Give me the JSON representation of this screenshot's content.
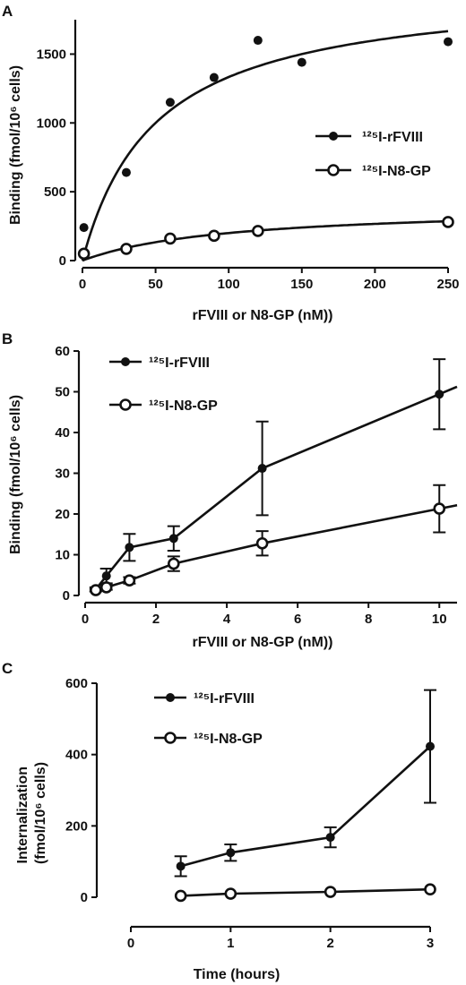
{
  "chart_data": [
    {
      "panel": "A",
      "type": "scatter",
      "xlabel": "rFVIII or N8-GP (nM))",
      "ylabel": "Binding (fmol/10⁶ cells)",
      "xlim": [
        0,
        250
      ],
      "ylim": [
        0,
        1750
      ],
      "xticks": [
        0,
        50,
        100,
        150,
        200,
        250
      ],
      "yticks": [
        0,
        500,
        1000,
        1500
      ],
      "legend_position": "center-right",
      "series": [
        {
          "name": "¹²⁵I-rFVIII",
          "marker": "filled",
          "x": [
            1,
            30,
            60,
            90,
            120,
            150,
            250
          ],
          "y": [
            240,
            640,
            1150,
            1330,
            1600,
            1440,
            1590
          ]
        },
        {
          "name": "¹²⁵I-N8-GP",
          "marker": "open",
          "x": [
            1,
            30,
            60,
            90,
            120,
            250
          ],
          "y": [
            50,
            85,
            160,
            180,
            215,
            280
          ]
        }
      ],
      "fits": [
        {
          "series": "¹²⁵I-rFVIII",
          "model": "one-site saturation",
          "bmax": 2000,
          "kd": 50
        },
        {
          "series": "¹²⁵I-N8-GP",
          "model": "one-site saturation",
          "bmax": 400,
          "kd": 100
        }
      ]
    },
    {
      "panel": "B",
      "type": "line",
      "xlabel": "rFVIII or N8-GP (nM))",
      "ylabel": "Binding (fmol/10⁶ cells)",
      "xlim": [
        0,
        10.5
      ],
      "ylim": [
        0,
        60
      ],
      "xticks": [
        0,
        2,
        4,
        6,
        8,
        10
      ],
      "yticks": [
        0,
        10,
        20,
        30,
        40,
        50,
        60
      ],
      "legend_position": "top-left",
      "series": [
        {
          "name": "¹²⁵I-rFVIII",
          "marker": "filled",
          "x": [
            0.3,
            0.6,
            1.25,
            2.5,
            5,
            10
          ],
          "y": [
            1.5,
            4.8,
            11.8,
            14,
            31.2,
            49.4
          ],
          "err": [
            0.5,
            1.8,
            3.3,
            3,
            11.5,
            8.6
          ]
        },
        {
          "name": "¹²⁵I-N8-GP",
          "marker": "open",
          "x": [
            0.3,
            0.6,
            1.25,
            2.5,
            5,
            10
          ],
          "y": [
            1.3,
            2,
            3.7,
            7.8,
            12.8,
            21.3
          ],
          "err": [
            0.3,
            0.6,
            0.8,
            1.8,
            3,
            5.8
          ]
        }
      ]
    },
    {
      "panel": "C",
      "type": "line",
      "xlabel": "Time (hours)",
      "ylabel": "Internalization (fmol/10⁶ cells)",
      "ylabel_lines": [
        "Internalization",
        "(fmol/10⁶ cells)"
      ],
      "xlim": [
        0,
        3
      ],
      "ylim": [
        0,
        600
      ],
      "xticks": [
        0,
        1,
        2,
        3
      ],
      "yticks": [
        0,
        200,
        400,
        600
      ],
      "legend_position": "top-left",
      "series": [
        {
          "name": "¹²⁵I-rFVIII",
          "marker": "filled",
          "x": [
            0.5,
            1,
            2,
            3
          ],
          "y": [
            87,
            125,
            168,
            423
          ],
          "err": [
            28,
            23,
            28,
            158
          ]
        },
        {
          "name": "¹²⁵I-N8-GP",
          "marker": "open",
          "x": [
            0.5,
            1,
            2,
            3
          ],
          "y": [
            4,
            10,
            15,
            22
          ],
          "err": [
            0,
            0,
            0,
            0
          ]
        }
      ]
    }
  ],
  "panel_labels": [
    "A",
    "B",
    "C"
  ]
}
